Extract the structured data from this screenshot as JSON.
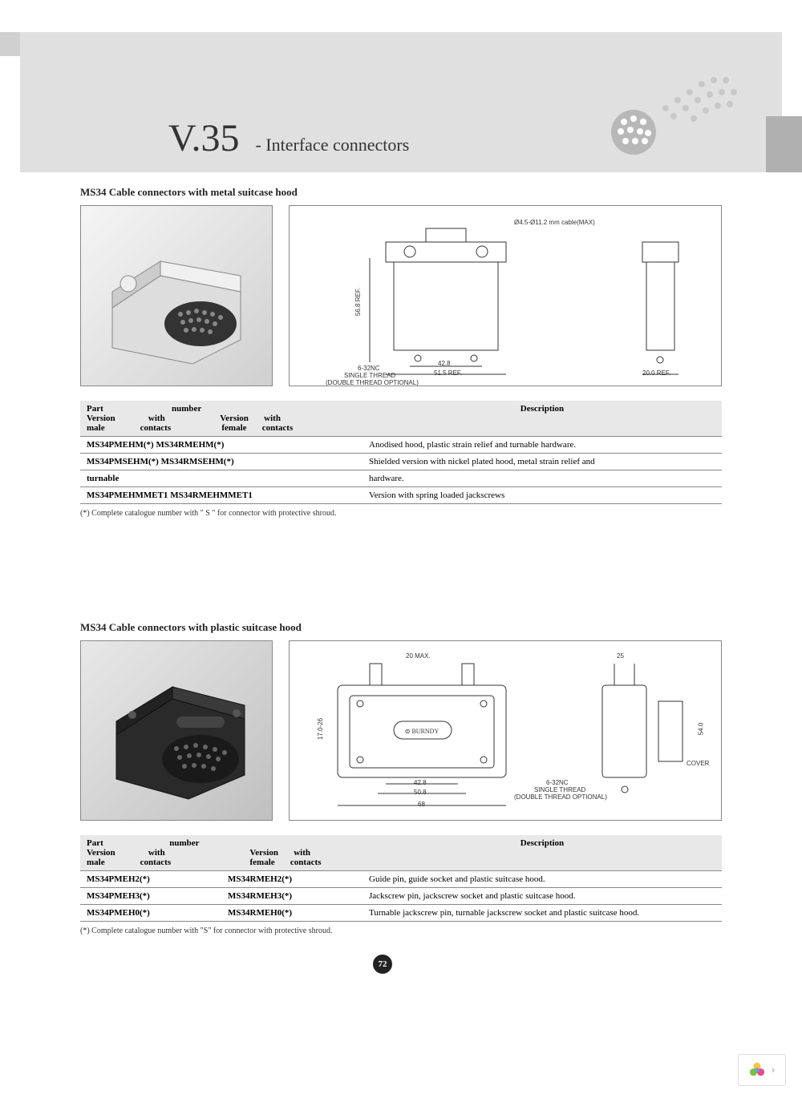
{
  "header": {
    "title": "V.35",
    "subtitle": "- Interface connectors"
  },
  "section1": {
    "title": "MS34 Cable connectors with metal suitcase hood",
    "drawing_labels": {
      "cable": "Ø4.5-Ø11.2 mm cable(MAX)",
      "h": "56.8 REF.",
      "w1": "42.8",
      "w2": "51.5 REF.",
      "depth": "20.0 REF.",
      "thread1": "6-32NC",
      "thread2": "SINGLE THREAD",
      "thread3": "(DOUBLE THREAD OPTIONAL)"
    },
    "table": {
      "header_part": "Part",
      "header_number": "number",
      "header_version": "Version",
      "header_with": "with",
      "header_male": "male",
      "header_female": "female",
      "header_contacts": "contacts",
      "header_desc": "Description",
      "rows": [
        {
          "m": "MS34PMEHM(*)",
          "m2": "MS34RMEHM(*)",
          "f": "",
          "d": "Anodised hood, plastic strain relief and turnable hardware."
        },
        {
          "m": "MS34PMSEHM(*)",
          "m2": "MS34RMSEHM(*)",
          "f": "",
          "d": "Shielded version with nickel plated hood, metal strain relief and"
        },
        {
          "m": "turnable",
          "m2": "",
          "f": "",
          "d": "hardware."
        },
        {
          "m": "MS34PMEHMMET1",
          "m2": "MS34RMEHMMET1",
          "f": "",
          "d": "Version with spring loaded jackscrews"
        }
      ]
    },
    "footnote": "(*) Complete catalogue number with \" S \" for connector with protective shroud."
  },
  "section2": {
    "title": "MS34 Cable connectors with plastic suitcase hood",
    "drawing_labels": {
      "top": "20 MAX.",
      "side_w": "25",
      "h1": "17.0-26",
      "h2": "54.0",
      "w1": "42.8",
      "w2": "50.8",
      "w3": "68",
      "cover": "COVER",
      "thread1": "6-32NC",
      "thread2": "SINGLE THREAD",
      "thread3": "(DOUBLE THREAD OPTIONAL)",
      "brand": "BURNDY"
    },
    "table": {
      "rows": [
        {
          "m": "MS34PMEH2(*)",
          "f": "MS34RMEH2(*)",
          "d": "Guide pin, guide socket and plastic suitcase hood."
        },
        {
          "m": "MS34PMEH3(*)",
          "f": "MS34RMEH3(*)",
          "d": "Jackscrew pin, jackscrew socket and plastic suitcase hood."
        },
        {
          "m": "MS34PMEH0(*)",
          "f": "MS34RMEH0(*)",
          "d": "Turnable jackscrew pin, turnable jackscrew socket and plastic suitcase hood."
        }
      ]
    },
    "footnote": "(*) Complete catalogue number with \"S\" for connector with protective shroud."
  },
  "page_number": "72",
  "colors": {
    "header_bg": "#e0e0e0",
    "table_header": "#e8e8e8",
    "border": "#888888",
    "text": "#222222"
  }
}
